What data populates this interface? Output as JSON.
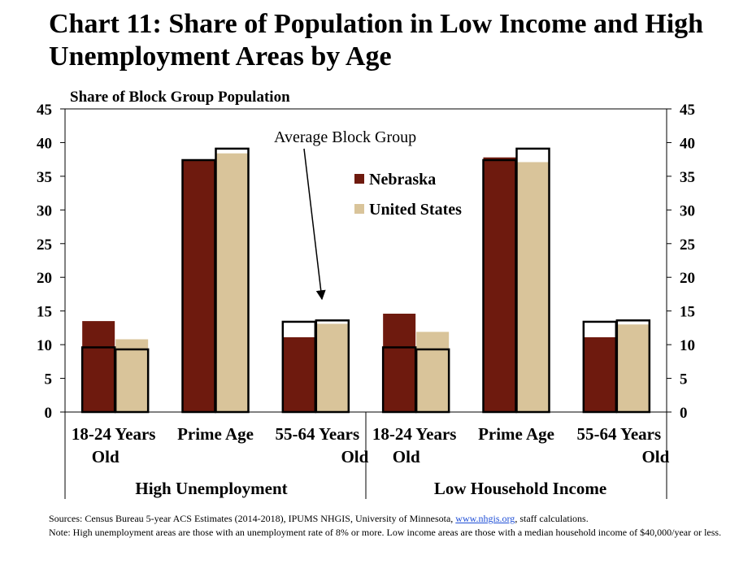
{
  "chart_data": {
    "type": "bar",
    "title": "Chart 11: Share of Population in Low Income and High Unemployment Areas by Age",
    "ylabel": "Share of Block Group Population",
    "ylim": [
      0,
      45
    ],
    "yticks": [
      0,
      5,
      10,
      15,
      20,
      25,
      30,
      35,
      40,
      45
    ],
    "ytick_labels": [
      "0",
      "5",
      "10",
      "15",
      "20",
      "25",
      "30",
      "35",
      "40",
      "45"
    ],
    "groups": [
      {
        "label": "High Unemployment",
        "categories": [
          "18-24 Years Old",
          "Prime Age",
          "55-64 Years Old"
        ]
      },
      {
        "label": "Low Household Income",
        "categories": [
          "18-24 Years Old",
          "Prime Age",
          "55-64 Years Old"
        ]
      }
    ],
    "category_label_lines": [
      [
        "18-24 Years",
        "Old"
      ],
      [
        "Prime Age"
      ],
      [
        "55-64 Years",
        "Old"
      ],
      [
        "18-24 Years",
        "Old"
      ],
      [
        "Prime Age"
      ],
      [
        "55-64 Years",
        "Old"
      ]
    ],
    "series": [
      {
        "name": "Nebraska",
        "color": "#6e1a0e",
        "values": [
          13.5,
          37.4,
          11.1,
          14.6,
          37.8,
          11.1
        ]
      },
      {
        "name": "United States",
        "color": "#d9c49a",
        "values": [
          10.8,
          38.4,
          13.1,
          11.9,
          37.1,
          13.0
        ]
      },
      {
        "name": "Average Block Group",
        "style": "outline",
        "color": "#000000",
        "values": [
          [
            9.6,
            9.3
          ],
          [
            37.4,
            39.1
          ],
          [
            13.4,
            13.6
          ],
          [
            9.6,
            9.3
          ],
          [
            37.4,
            39.1
          ],
          [
            13.4,
            13.6
          ]
        ]
      }
    ],
    "legend": {
      "placement": "top-right-inside",
      "entries": [
        "Nebraska",
        "United States"
      ]
    },
    "annotation": "Average Block Group",
    "grid": false
  },
  "footnotes": {
    "sources_prefix": "Sources: Census Bureau 5-year ACS Estimates (2014-2018), IPUMS NHGIS, University of Minnesota, ",
    "sources_link": "www.nhgis.org",
    "sources_suffix": ", staff calculations.",
    "note": "Note: High unemployment areas are those with an unemployment rate of 8% or more. Low income areas are those with a median household income of $40,000/year or less."
  }
}
